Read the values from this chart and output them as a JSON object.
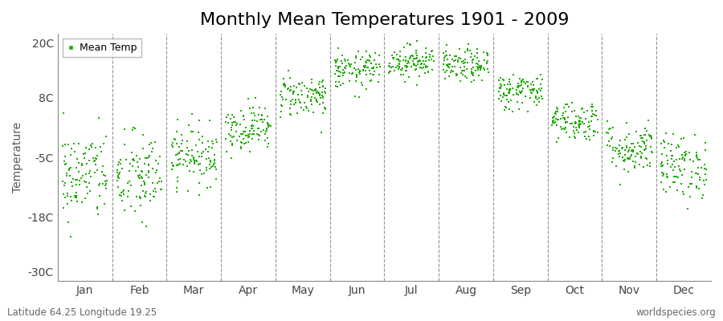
{
  "title": "Monthly Mean Temperatures 1901 - 2009",
  "ylabel": "Temperature",
  "subtitle": "Latitude 64.25 Longitude 19.25",
  "watermark": "worldspecies.org",
  "legend_label": "Mean Temp",
  "dot_color": "#22aa00",
  "background_color": "#ffffff",
  "plot_bg_color": "#ffffff",
  "yticks": [
    -30,
    -18,
    -5,
    8,
    20
  ],
  "ytick_labels": [
    "-30C",
    "-18C",
    "-5C",
    "8C",
    "20C"
  ],
  "ylim": [
    -32,
    22
  ],
  "xlim": [
    0,
    12
  ],
  "months": [
    "Jan",
    "Feb",
    "Mar",
    "Apr",
    "May",
    "Jun",
    "Jul",
    "Aug",
    "Sep",
    "Oct",
    "Nov",
    "Dec"
  ],
  "monthly_means": [
    -9.0,
    -9.5,
    -4.5,
    1.5,
    8.5,
    14.0,
    16.0,
    15.0,
    9.5,
    3.0,
    -3.0,
    -7.0
  ],
  "monthly_stds": [
    5.0,
    5.0,
    3.2,
    2.5,
    2.3,
    2.0,
    1.8,
    1.8,
    2.0,
    2.2,
    2.8,
    3.5
  ],
  "n_years": 109,
  "seed": 42,
  "marker_size": 3,
  "title_fontsize": 16,
  "axis_fontsize": 10,
  "tick_fontsize": 10
}
